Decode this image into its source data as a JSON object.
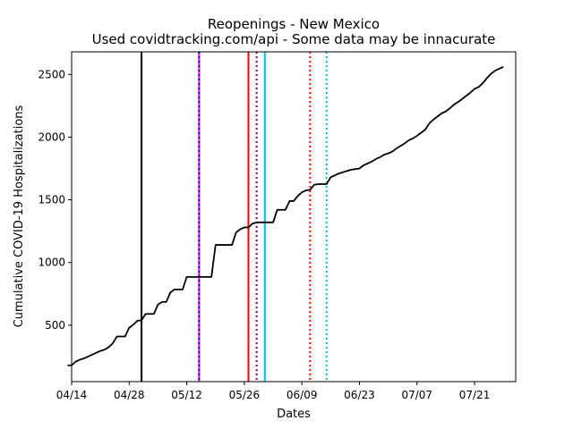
{
  "chart_data": {
    "type": "line",
    "title": "Reopenings - New Mexico",
    "subtitle": "Used covidtracking.com/api - Some data may be innacurate",
    "xlabel": "Dates",
    "ylabel": "Cumulative COVID-19 Hospitalizations",
    "xlim": [
      "2020-04-14",
      "2020-07-31"
    ],
    "ylim": [
      50,
      2680
    ],
    "x_tick_labels": [
      "04/14",
      "04/28",
      "05/12",
      "05/26",
      "06/09",
      "06/23",
      "07/07",
      "07/21"
    ],
    "x_tick_dates": [
      "2020-04-14",
      "2020-04-28",
      "2020-05-12",
      "2020-05-26",
      "2020-06-09",
      "2020-06-23",
      "2020-07-07",
      "2020-07-21"
    ],
    "y_ticks": [
      500,
      1000,
      1500,
      2000,
      2500
    ],
    "grid": false,
    "legend": "none",
    "series": [
      {
        "color": "#000000",
        "points": [
          [
            "2020-04-13",
            180
          ],
          [
            "2020-04-14",
            180
          ],
          [
            "2020-04-15",
            210
          ],
          [
            "2020-04-16",
            225
          ],
          [
            "2020-04-17",
            235
          ],
          [
            "2020-04-18",
            250
          ],
          [
            "2020-04-19",
            265
          ],
          [
            "2020-04-20",
            280
          ],
          [
            "2020-04-21",
            295
          ],
          [
            "2020-04-22",
            305
          ],
          [
            "2020-04-23",
            325
          ],
          [
            "2020-04-24",
            355
          ],
          [
            "2020-04-25",
            410
          ],
          [
            "2020-04-26",
            410
          ],
          [
            "2020-04-27",
            410
          ],
          [
            "2020-04-28",
            480
          ],
          [
            "2020-04-29",
            505
          ],
          [
            "2020-04-30",
            535
          ],
          [
            "2020-05-01",
            540
          ],
          [
            "2020-05-02",
            590
          ],
          [
            "2020-05-03",
            590
          ],
          [
            "2020-05-04",
            590
          ],
          [
            "2020-05-05",
            665
          ],
          [
            "2020-05-06",
            685
          ],
          [
            "2020-05-07",
            685
          ],
          [
            "2020-05-08",
            760
          ],
          [
            "2020-05-09",
            785
          ],
          [
            "2020-05-10",
            785
          ],
          [
            "2020-05-11",
            785
          ],
          [
            "2020-05-12",
            885
          ],
          [
            "2020-05-13",
            885
          ],
          [
            "2020-05-14",
            885
          ],
          [
            "2020-05-15",
            885
          ],
          [
            "2020-05-16",
            885
          ],
          [
            "2020-05-17",
            885
          ],
          [
            "2020-05-18",
            885
          ],
          [
            "2020-05-19",
            1140
          ],
          [
            "2020-05-20",
            1140
          ],
          [
            "2020-05-21",
            1140
          ],
          [
            "2020-05-22",
            1140
          ],
          [
            "2020-05-23",
            1140
          ],
          [
            "2020-05-24",
            1240
          ],
          [
            "2020-05-25",
            1265
          ],
          [
            "2020-05-26",
            1280
          ],
          [
            "2020-05-27",
            1280
          ],
          [
            "2020-05-28",
            1310
          ],
          [
            "2020-05-29",
            1320
          ],
          [
            "2020-05-30",
            1320
          ],
          [
            "2020-05-31",
            1320
          ],
          [
            "2020-06-01",
            1320
          ],
          [
            "2020-06-02",
            1320
          ],
          [
            "2020-06-03",
            1420
          ],
          [
            "2020-06-04",
            1420
          ],
          [
            "2020-06-05",
            1420
          ],
          [
            "2020-06-06",
            1490
          ],
          [
            "2020-06-07",
            1490
          ],
          [
            "2020-06-08",
            1530
          ],
          [
            "2020-06-09",
            1560
          ],
          [
            "2020-06-10",
            1575
          ],
          [
            "2020-06-11",
            1580
          ],
          [
            "2020-06-12",
            1620
          ],
          [
            "2020-06-13",
            1625
          ],
          [
            "2020-06-14",
            1625
          ],
          [
            "2020-06-15",
            1625
          ],
          [
            "2020-06-16",
            1680
          ],
          [
            "2020-06-17",
            1695
          ],
          [
            "2020-06-18",
            1710
          ],
          [
            "2020-06-19",
            1720
          ],
          [
            "2020-06-20",
            1730
          ],
          [
            "2020-06-21",
            1740
          ],
          [
            "2020-06-22",
            1745
          ],
          [
            "2020-06-23",
            1750
          ],
          [
            "2020-06-24",
            1775
          ],
          [
            "2020-06-25",
            1790
          ],
          [
            "2020-06-26",
            1805
          ],
          [
            "2020-06-27",
            1825
          ],
          [
            "2020-06-28",
            1840
          ],
          [
            "2020-06-29",
            1860
          ],
          [
            "2020-06-30",
            1870
          ],
          [
            "2020-07-01",
            1885
          ],
          [
            "2020-07-02",
            1910
          ],
          [
            "2020-07-03",
            1930
          ],
          [
            "2020-07-04",
            1950
          ],
          [
            "2020-07-05",
            1975
          ],
          [
            "2020-07-06",
            1990
          ],
          [
            "2020-07-07",
            2010
          ],
          [
            "2020-07-08",
            2035
          ],
          [
            "2020-07-09",
            2060
          ],
          [
            "2020-07-10",
            2110
          ],
          [
            "2020-07-11",
            2140
          ],
          [
            "2020-07-12",
            2165
          ],
          [
            "2020-07-13",
            2190
          ],
          [
            "2020-07-14",
            2205
          ],
          [
            "2020-07-15",
            2230
          ],
          [
            "2020-07-16",
            2260
          ],
          [
            "2020-07-17",
            2280
          ],
          [
            "2020-07-18",
            2305
          ],
          [
            "2020-07-19",
            2330
          ],
          [
            "2020-07-20",
            2355
          ],
          [
            "2020-07-21",
            2385
          ],
          [
            "2020-07-22",
            2400
          ],
          [
            "2020-07-23",
            2430
          ],
          [
            "2020-07-24",
            2470
          ],
          [
            "2020-07-25",
            2505
          ],
          [
            "2020-07-26",
            2530
          ],
          [
            "2020-07-27",
            2545
          ],
          [
            "2020-07-28",
            2560
          ]
        ]
      }
    ],
    "vertical_lines": [
      {
        "date": "2020-05-01",
        "color": "#000000",
        "style": "solid"
      },
      {
        "date": "2020-05-15",
        "color": "#ff00ff",
        "style": "solid"
      },
      {
        "date": "2020-05-15",
        "color": "#000080",
        "style": "dotted"
      },
      {
        "date": "2020-05-27",
        "color": "#ff0000",
        "style": "solid"
      },
      {
        "date": "2020-05-29",
        "color": "#800080",
        "style": "dotted"
      },
      {
        "date": "2020-05-31",
        "color": "#00bfff",
        "style": "solid"
      },
      {
        "date": "2020-06-11",
        "color": "#ff0000",
        "style": "dotted"
      },
      {
        "date": "2020-06-15",
        "color": "#00bfbf",
        "style": "dotted"
      }
    ]
  }
}
